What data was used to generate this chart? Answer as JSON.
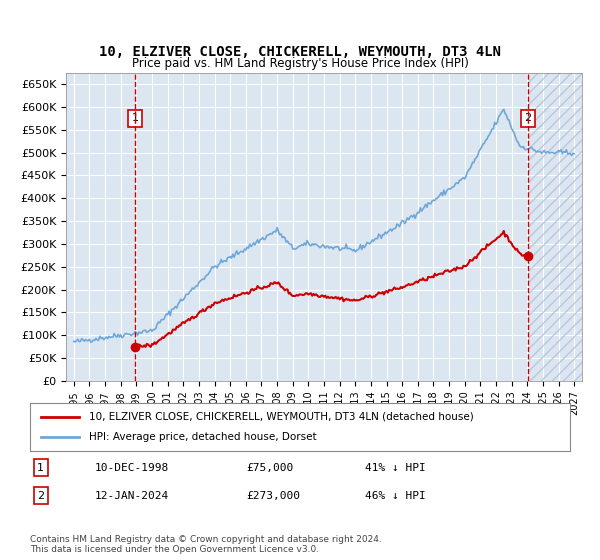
{
  "title": "10, ELZIVER CLOSE, CHICKERELL, WEYMOUTH, DT3 4LN",
  "subtitle": "Price paid vs. HM Land Registry's House Price Index (HPI)",
  "title_fontsize": 12,
  "subtitle_fontsize": 10,
  "ylabel": "",
  "ylim": [
    0,
    675000
  ],
  "yticks": [
    0,
    50000,
    100000,
    150000,
    200000,
    250000,
    300000,
    350000,
    400000,
    450000,
    500000,
    550000,
    600000,
    650000
  ],
  "ytick_labels": [
    "£0",
    "£50K",
    "£100K",
    "£150K",
    "£200K",
    "£250K",
    "£300K",
    "£350K",
    "£400K",
    "£450K",
    "£500K",
    "£550K",
    "£600K",
    "£650K"
  ],
  "background_color": "#dce6f1",
  "hatch_color": "#b0c0d8",
  "grid_color": "#ffffff",
  "sale1_date": 1998.92,
  "sale1_price": 75000,
  "sale1_label": "1",
  "sale2_date": 2024.04,
  "sale2_price": 273000,
  "sale2_label": "2",
  "legend_line1": "10, ELZIVER CLOSE, CHICKERELL, WEYMOUTH, DT3 4LN (detached house)",
  "legend_line2": "HPI: Average price, detached house, Dorset",
  "table_row1": [
    "1",
    "10-DEC-1998",
    "£75,000",
    "41% ↓ HPI"
  ],
  "table_row2": [
    "2",
    "12-JAN-2024",
    "£273,000",
    "46% ↓ HPI"
  ],
  "footnote": "Contains HM Land Registry data © Crown copyright and database right 2024.\nThis data is licensed under the Open Government Licence v3.0.",
  "hpi_color": "#6ea7d8",
  "price_color": "#cc0000",
  "vline_color": "#cc0000",
  "sale_marker_color": "#cc0000"
}
